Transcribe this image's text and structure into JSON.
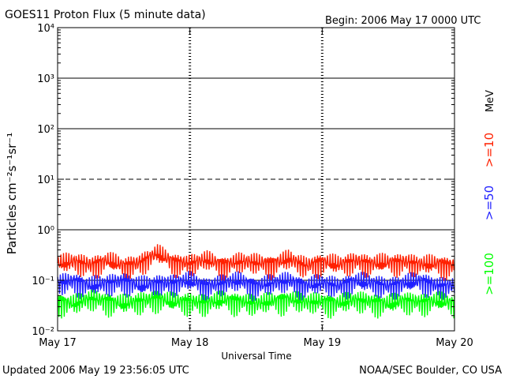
{
  "header": {
    "title": "GOES11 Proton Flux (5 minute data)",
    "begin": "Begin: 2006 May 17 0000 UTC"
  },
  "footer": {
    "updated": "Updated 2006 May 19 23:56:05 UTC",
    "credit": "NOAA/SEC Boulder, CO USA"
  },
  "chart_data": {
    "type": "line",
    "title": "GOES11 Proton Flux (5 minute data)",
    "xlabel": "Universal Time",
    "ylabel": "Particles cm⁻²s⁻¹sr⁻¹",
    "y_scale": "log",
    "ylim": [
      0.01,
      10000
    ],
    "y_ticks": [
      {
        "value": 0.01,
        "label": "10⁻²"
      },
      {
        "value": 0.1,
        "label": "10⁻¹"
      },
      {
        "value": 1,
        "label": "10⁰"
      },
      {
        "value": 10,
        "label": "10¹"
      },
      {
        "value": 100,
        "label": "10²"
      },
      {
        "value": 1000,
        "label": "10³"
      },
      {
        "value": 10000,
        "label": "10⁴"
      }
    ],
    "xlim": [
      "2006-05-17T00:00",
      "2006-05-20T00:00"
    ],
    "x_ticks": [
      {
        "value": "2006-05-17T00:00",
        "label": "May 17"
      },
      {
        "value": "2006-05-18T00:00",
        "label": "May 18"
      },
      {
        "value": "2006-05-19T00:00",
        "label": "May 19"
      },
      {
        "value": "2006-05-20T00:00",
        "label": "May 20"
      }
    ],
    "threshold_lines": [
      {
        "value": 0.1,
        "style": "solid"
      },
      {
        "value": 1,
        "style": "solid"
      },
      {
        "value": 10,
        "style": "dashed"
      },
      {
        "value": 100,
        "style": "solid"
      },
      {
        "value": 1000,
        "style": "solid"
      }
    ],
    "legend_placement": "right",
    "legend_unit": "MeV",
    "series": [
      {
        "name": ">=10",
        "color": "#ff2000",
        "x": [
          "2006-05-17T00:00",
          "2006-05-17T03:00",
          "2006-05-17T06:00",
          "2006-05-17T09:00",
          "2006-05-17T12:00",
          "2006-05-17T15:00",
          "2006-05-17T18:00",
          "2006-05-17T21:00",
          "2006-05-18T00:00",
          "2006-05-18T03:00",
          "2006-05-18T06:00",
          "2006-05-18T09:00",
          "2006-05-18T12:00",
          "2006-05-18T15:00",
          "2006-05-18T18:00",
          "2006-05-18T21:00",
          "2006-05-19T00:00",
          "2006-05-19T03:00",
          "2006-05-19T06:00",
          "2006-05-19T09:00",
          "2006-05-19T12:00",
          "2006-05-19T15:00",
          "2006-05-19T18:00",
          "2006-05-19T21:00",
          "2006-05-20T00:00"
        ],
        "values": [
          0.22,
          0.24,
          0.21,
          0.25,
          0.2,
          0.23,
          0.35,
          0.24,
          0.22,
          0.26,
          0.21,
          0.24,
          0.23,
          0.22,
          0.27,
          0.2,
          0.24,
          0.21,
          0.25,
          0.22,
          0.23,
          0.24,
          0.21,
          0.22,
          0.2
        ]
      },
      {
        "name": ">=50",
        "color": "#2020ff",
        "x": [
          "2006-05-17T00:00",
          "2006-05-17T03:00",
          "2006-05-17T06:00",
          "2006-05-17T09:00",
          "2006-05-17T12:00",
          "2006-05-17T15:00",
          "2006-05-17T18:00",
          "2006-05-17T21:00",
          "2006-05-18T00:00",
          "2006-05-18T03:00",
          "2006-05-18T06:00",
          "2006-05-18T09:00",
          "2006-05-18T12:00",
          "2006-05-18T15:00",
          "2006-05-18T18:00",
          "2006-05-18T21:00",
          "2006-05-19T00:00",
          "2006-05-19T03:00",
          "2006-05-19T06:00",
          "2006-05-19T09:00",
          "2006-05-19T12:00",
          "2006-05-19T15:00",
          "2006-05-19T18:00",
          "2006-05-19T21:00",
          "2006-05-20T00:00"
        ],
        "values": [
          0.09,
          0.1,
          0.08,
          0.09,
          0.1,
          0.08,
          0.09,
          0.09,
          0.1,
          0.08,
          0.09,
          0.1,
          0.08,
          0.09,
          0.1,
          0.08,
          0.09,
          0.08,
          0.1,
          0.09,
          0.08,
          0.09,
          0.1,
          0.08,
          0.08
        ]
      },
      {
        "name": ">=100",
        "color": "#00ff00",
        "x": [
          "2006-05-17T00:00",
          "2006-05-17T03:00",
          "2006-05-17T06:00",
          "2006-05-17T09:00",
          "2006-05-17T12:00",
          "2006-05-17T15:00",
          "2006-05-17T18:00",
          "2006-05-17T21:00",
          "2006-05-18T00:00",
          "2006-05-18T03:00",
          "2006-05-18T06:00",
          "2006-05-18T09:00",
          "2006-05-18T12:00",
          "2006-05-18T15:00",
          "2006-05-18T18:00",
          "2006-05-18T21:00",
          "2006-05-19T00:00",
          "2006-05-19T03:00",
          "2006-05-19T06:00",
          "2006-05-19T09:00",
          "2006-05-19T12:00",
          "2006-05-19T15:00",
          "2006-05-19T18:00",
          "2006-05-19T21:00",
          "2006-05-20T00:00"
        ],
        "values": [
          0.04,
          0.035,
          0.045,
          0.04,
          0.035,
          0.04,
          0.045,
          0.038,
          0.04,
          0.036,
          0.042,
          0.04,
          0.035,
          0.04,
          0.044,
          0.037,
          0.04,
          0.036,
          0.042,
          0.039,
          0.035,
          0.041,
          0.038,
          0.04,
          0.036
        ]
      }
    ]
  }
}
